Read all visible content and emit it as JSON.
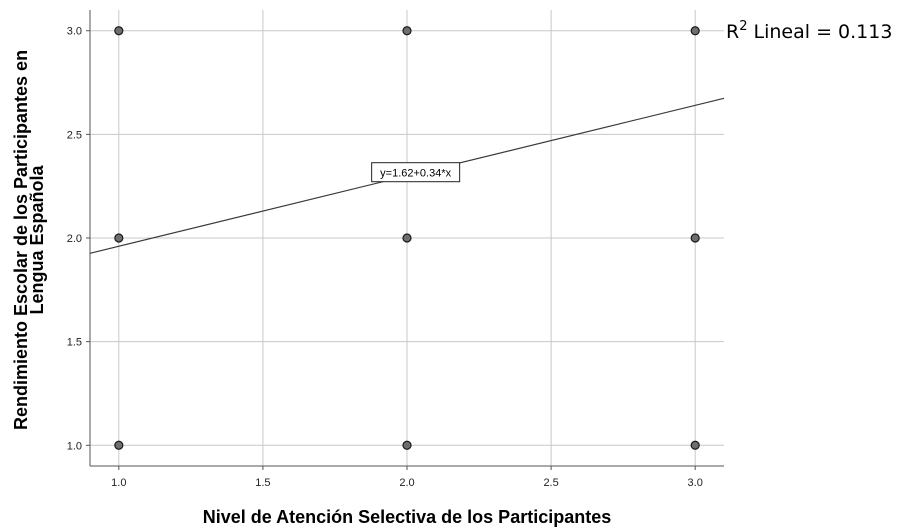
{
  "chart_data": {
    "type": "scatter",
    "title": "",
    "xlabel": "Nivel de Atención Selectiva de los Participantes",
    "ylabel_lines": [
      "Rendimiento Escolar de los Participantes en",
      "Lengua Española"
    ],
    "xlim": [
      0.9,
      3.1
    ],
    "ylim": [
      0.9,
      3.1
    ],
    "x_ticks": [
      1.0,
      1.5,
      2.0,
      2.5,
      3.0
    ],
    "x_tick_labels": [
      "1.0",
      "1.5",
      "2.0",
      "2.5",
      "3.0"
    ],
    "y_ticks": [
      1.0,
      1.5,
      2.0,
      2.5,
      3.0
    ],
    "y_tick_labels": [
      "1.0",
      "1.5",
      "2.0",
      "2.5",
      "3.0"
    ],
    "grid": true,
    "points": [
      {
        "x": 1,
        "y": 3
      },
      {
        "x": 2,
        "y": 3
      },
      {
        "x": 3,
        "y": 3
      },
      {
        "x": 1,
        "y": 2
      },
      {
        "x": 2,
        "y": 2
      },
      {
        "x": 3,
        "y": 2
      },
      {
        "x": 1,
        "y": 1
      },
      {
        "x": 2,
        "y": 1
      },
      {
        "x": 3,
        "y": 1
      }
    ],
    "fit_line": {
      "intercept": 1.62,
      "slope": 0.34,
      "equation_label": "y=1.62+0.34*x"
    },
    "r2_label": {
      "prefix": "R",
      "superscript": "2",
      "text": " Lineal = 0.113"
    },
    "colors": {
      "grid": "#c8c8c8",
      "axis": "#555555",
      "point_fill": "#6e6e6e",
      "point_stroke": "#1a1a1a",
      "line": "#3a3a3a"
    }
  }
}
